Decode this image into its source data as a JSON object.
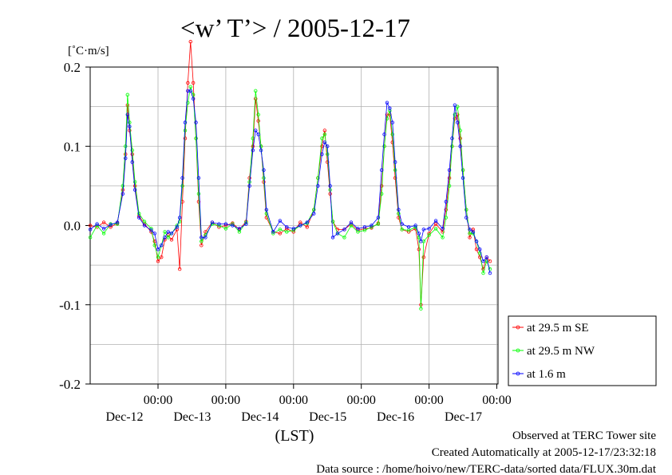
{
  "chart_data": {
    "type": "line",
    "title": "<w’ T’> / 2005-12-17",
    "unit_label": "[˚C·m/s]",
    "xlabel": "(LST)",
    "ylabel": "",
    "ylim": [
      -0.2,
      0.2
    ],
    "yticks": [
      0.2,
      0.1,
      0.0,
      -0.1,
      -0.2
    ],
    "ytick_labels": [
      "0.2",
      "0.1",
      "0.0",
      "-0.1",
      "-0.2"
    ],
    "xlim_days": [
      0,
      6
    ],
    "xtick_labels": [
      {
        "time": "00:00",
        "date": "Dec-12"
      },
      {
        "time": "00:00",
        "date": "Dec-13"
      },
      {
        "time": "00:00",
        "date": "Dec-14"
      },
      {
        "time": "00:00",
        "date": "Dec-15"
      },
      {
        "time": "00:00",
        "date": "Dec-16"
      },
      {
        "time": "00:00",
        "date": "Dec-17"
      }
    ],
    "grid": true,
    "legend_position": "right",
    "series": [
      {
        "name": "at 29.5 m SE",
        "color": "#ff0000",
        "points": [
          [
            0.0,
            0.0
          ],
          [
            0.1,
            -0.002
          ],
          [
            0.2,
            0.004
          ],
          [
            0.3,
            -0.002
          ],
          [
            0.4,
            0.003
          ],
          [
            0.48,
            0.045
          ],
          [
            0.52,
            0.09
          ],
          [
            0.55,
            0.152
          ],
          [
            0.58,
            0.12
          ],
          [
            0.62,
            0.09
          ],
          [
            0.66,
            0.05
          ],
          [
            0.72,
            0.012
          ],
          [
            0.8,
            0.002
          ],
          [
            0.9,
            -0.008
          ],
          [
            0.95,
            -0.02
          ],
          [
            1.0,
            -0.045
          ],
          [
            1.05,
            -0.04
          ],
          [
            1.1,
            -0.018
          ],
          [
            1.15,
            -0.012
          ],
          [
            1.2,
            -0.018
          ],
          [
            1.28,
            -0.005
          ],
          [
            1.32,
            -0.055
          ],
          [
            1.36,
            0.03
          ],
          [
            1.4,
            0.11
          ],
          [
            1.44,
            0.18
          ],
          [
            1.48,
            0.232
          ],
          [
            1.52,
            0.18
          ],
          [
            1.56,
            0.11
          ],
          [
            1.6,
            0.03
          ],
          [
            1.64,
            -0.025
          ],
          [
            1.7,
            -0.008
          ],
          [
            1.8,
            0.004
          ],
          [
            1.9,
            -0.002
          ],
          [
            2.0,
            0.0
          ],
          [
            2.1,
            0.003
          ],
          [
            2.2,
            -0.005
          ],
          [
            2.3,
            0.005
          ],
          [
            2.35,
            0.06
          ],
          [
            2.4,
            0.1
          ],
          [
            2.44,
            0.16
          ],
          [
            2.48,
            0.132
          ],
          [
            2.52,
            0.1
          ],
          [
            2.56,
            0.055
          ],
          [
            2.6,
            0.01
          ],
          [
            2.7,
            -0.008
          ],
          [
            2.8,
            -0.01
          ],
          [
            2.9,
            -0.004
          ],
          [
            3.0,
            -0.008
          ],
          [
            3.1,
            0.004
          ],
          [
            3.2,
            -0.002
          ],
          [
            3.3,
            0.02
          ],
          [
            3.36,
            0.06
          ],
          [
            3.42,
            0.1
          ],
          [
            3.46,
            0.12
          ],
          [
            3.5,
            0.08
          ],
          [
            3.54,
            0.04
          ],
          [
            3.58,
            0.005
          ],
          [
            3.65,
            -0.005
          ],
          [
            3.75,
            -0.005
          ],
          [
            3.85,
            0.002
          ],
          [
            3.95,
            -0.006
          ],
          [
            4.05,
            -0.004
          ],
          [
            4.15,
            -0.003
          ],
          [
            4.25,
            0.003
          ],
          [
            4.3,
            0.05
          ],
          [
            4.34,
            0.1
          ],
          [
            4.38,
            0.14
          ],
          [
            4.42,
            0.14
          ],
          [
            4.46,
            0.105
          ],
          [
            4.5,
            0.06
          ],
          [
            4.55,
            0.01
          ],
          [
            4.6,
            -0.005
          ],
          [
            4.7,
            -0.008
          ],
          [
            4.8,
            -0.004
          ],
          [
            4.85,
            -0.03
          ],
          [
            4.88,
            -0.1
          ],
          [
            4.92,
            -0.04
          ],
          [
            5.0,
            -0.01
          ],
          [
            5.1,
            0.002
          ],
          [
            5.2,
            -0.008
          ],
          [
            5.25,
            0.02
          ],
          [
            5.3,
            0.06
          ],
          [
            5.34,
            0.1
          ],
          [
            5.38,
            0.135
          ],
          [
            5.42,
            0.14
          ],
          [
            5.46,
            0.11
          ],
          [
            5.5,
            0.07
          ],
          [
            5.55,
            0.02
          ],
          [
            5.6,
            -0.015
          ],
          [
            5.65,
            -0.005
          ],
          [
            5.7,
            -0.03
          ],
          [
            5.75,
            -0.04
          ],
          [
            5.8,
            -0.055
          ],
          [
            5.85,
            -0.04
          ],
          [
            5.9,
            -0.045
          ]
        ]
      },
      {
        "name": "at 29.5 m NW",
        "color": "#00ff00",
        "points": [
          [
            0.0,
            -0.015
          ],
          [
            0.1,
            0.0
          ],
          [
            0.2,
            -0.01
          ],
          [
            0.3,
            0.002
          ],
          [
            0.4,
            0.002
          ],
          [
            0.48,
            0.05
          ],
          [
            0.52,
            0.1
          ],
          [
            0.55,
            0.165
          ],
          [
            0.58,
            0.13
          ],
          [
            0.62,
            0.095
          ],
          [
            0.66,
            0.055
          ],
          [
            0.72,
            0.015
          ],
          [
            0.8,
            0.005
          ],
          [
            0.9,
            -0.004
          ],
          [
            0.95,
            -0.025
          ],
          [
            1.0,
            -0.04
          ],
          [
            1.05,
            -0.025
          ],
          [
            1.1,
            -0.008
          ],
          [
            1.15,
            -0.015
          ],
          [
            1.2,
            -0.01
          ],
          [
            1.28,
            0.0
          ],
          [
            1.32,
            0.005
          ],
          [
            1.36,
            0.05
          ],
          [
            1.4,
            0.12
          ],
          [
            1.44,
            0.155
          ],
          [
            1.48,
            0.175
          ],
          [
            1.52,
            0.165
          ],
          [
            1.56,
            0.11
          ],
          [
            1.6,
            0.04
          ],
          [
            1.64,
            -0.02
          ],
          [
            1.7,
            -0.012
          ],
          [
            1.8,
            0.002
          ],
          [
            1.9,
            0.0
          ],
          [
            2.0,
            -0.004
          ],
          [
            2.1,
            0.002
          ],
          [
            2.2,
            -0.008
          ],
          [
            2.3,
            0.004
          ],
          [
            2.35,
            0.055
          ],
          [
            2.4,
            0.11
          ],
          [
            2.44,
            0.17
          ],
          [
            2.48,
            0.14
          ],
          [
            2.52,
            0.1
          ],
          [
            2.56,
            0.06
          ],
          [
            2.6,
            0.015
          ],
          [
            2.7,
            -0.01
          ],
          [
            2.8,
            -0.005
          ],
          [
            2.9,
            -0.008
          ],
          [
            3.0,
            -0.006
          ],
          [
            3.1,
            0.0
          ],
          [
            3.2,
            0.003
          ],
          [
            3.3,
            0.02
          ],
          [
            3.36,
            0.06
          ],
          [
            3.42,
            0.11
          ],
          [
            3.46,
            0.115
          ],
          [
            3.5,
            0.09
          ],
          [
            3.54,
            0.045
          ],
          [
            3.58,
            0.005
          ],
          [
            3.65,
            -0.01
          ],
          [
            3.75,
            -0.015
          ],
          [
            3.85,
            0.0
          ],
          [
            3.95,
            -0.008
          ],
          [
            4.05,
            -0.006
          ],
          [
            4.15,
            -0.002
          ],
          [
            4.25,
            0.002
          ],
          [
            4.3,
            0.04
          ],
          [
            4.34,
            0.1
          ],
          [
            4.38,
            0.135
          ],
          [
            4.42,
            0.145
          ],
          [
            4.46,
            0.115
          ],
          [
            4.5,
            0.07
          ],
          [
            4.55,
            0.015
          ],
          [
            4.6,
            -0.005
          ],
          [
            4.7,
            -0.006
          ],
          [
            4.8,
            -0.002
          ],
          [
            4.85,
            -0.015
          ],
          [
            4.88,
            -0.105
          ],
          [
            4.92,
            -0.02
          ],
          [
            5.0,
            -0.012
          ],
          [
            5.1,
            -0.004
          ],
          [
            5.2,
            -0.015
          ],
          [
            5.25,
            0.01
          ],
          [
            5.3,
            0.05
          ],
          [
            5.34,
            0.1
          ],
          [
            5.38,
            0.14
          ],
          [
            5.42,
            0.15
          ],
          [
            5.46,
            0.12
          ],
          [
            5.5,
            0.07
          ],
          [
            5.55,
            0.02
          ],
          [
            5.6,
            -0.01
          ],
          [
            5.65,
            -0.01
          ],
          [
            5.7,
            -0.02
          ],
          [
            5.75,
            -0.035
          ],
          [
            5.8,
            -0.06
          ],
          [
            5.85,
            -0.045
          ],
          [
            5.9,
            -0.055
          ]
        ]
      },
      {
        "name": "at 1.6 m",
        "color": "#0000ff",
        "points": [
          [
            0.0,
            -0.005
          ],
          [
            0.1,
            0.002
          ],
          [
            0.2,
            -0.004
          ],
          [
            0.3,
            0.001
          ],
          [
            0.4,
            0.004
          ],
          [
            0.48,
            0.04
          ],
          [
            0.52,
            0.085
          ],
          [
            0.55,
            0.14
          ],
          [
            0.58,
            0.125
          ],
          [
            0.62,
            0.08
          ],
          [
            0.66,
            0.045
          ],
          [
            0.72,
            0.01
          ],
          [
            0.8,
            0.0
          ],
          [
            0.9,
            -0.006
          ],
          [
            0.95,
            -0.01
          ],
          [
            1.0,
            -0.03
          ],
          [
            1.05,
            -0.025
          ],
          [
            1.1,
            -0.015
          ],
          [
            1.15,
            -0.008
          ],
          [
            1.2,
            -0.01
          ],
          [
            1.28,
            -0.002
          ],
          [
            1.32,
            0.01
          ],
          [
            1.36,
            0.06
          ],
          [
            1.4,
            0.13
          ],
          [
            1.44,
            0.17
          ],
          [
            1.48,
            0.17
          ],
          [
            1.52,
            0.16
          ],
          [
            1.56,
            0.13
          ],
          [
            1.6,
            0.06
          ],
          [
            1.64,
            -0.015
          ],
          [
            1.7,
            -0.015
          ],
          [
            1.8,
            0.004
          ],
          [
            1.9,
            0.002
          ],
          [
            2.0,
            0.002
          ],
          [
            2.1,
            0.0
          ],
          [
            2.2,
            -0.004
          ],
          [
            2.3,
            0.002
          ],
          [
            2.35,
            0.05
          ],
          [
            2.4,
            0.095
          ],
          [
            2.44,
            0.12
          ],
          [
            2.48,
            0.115
          ],
          [
            2.52,
            0.095
          ],
          [
            2.56,
            0.07
          ],
          [
            2.6,
            0.02
          ],
          [
            2.7,
            -0.008
          ],
          [
            2.8,
            0.006
          ],
          [
            2.9,
            -0.002
          ],
          [
            3.0,
            -0.004
          ],
          [
            3.1,
            0.0
          ],
          [
            3.2,
            0.004
          ],
          [
            3.3,
            0.015
          ],
          [
            3.36,
            0.05
          ],
          [
            3.42,
            0.09
          ],
          [
            3.46,
            0.105
          ],
          [
            3.5,
            0.1
          ],
          [
            3.54,
            0.05
          ],
          [
            3.58,
            -0.015
          ],
          [
            3.65,
            -0.01
          ],
          [
            3.75,
            -0.005
          ],
          [
            3.85,
            0.004
          ],
          [
            3.95,
            -0.004
          ],
          [
            4.05,
            -0.002
          ],
          [
            4.15,
            0.0
          ],
          [
            4.25,
            0.01
          ],
          [
            4.3,
            0.07
          ],
          [
            4.34,
            0.115
          ],
          [
            4.38,
            0.155
          ],
          [
            4.42,
            0.148
          ],
          [
            4.46,
            0.13
          ],
          [
            4.5,
            0.08
          ],
          [
            4.55,
            0.02
          ],
          [
            4.6,
            0.002
          ],
          [
            4.7,
            -0.002
          ],
          [
            4.8,
            0.0
          ],
          [
            4.85,
            -0.01
          ],
          [
            4.88,
            -0.02
          ],
          [
            4.92,
            -0.005
          ],
          [
            5.0,
            -0.004
          ],
          [
            5.1,
            0.006
          ],
          [
            5.2,
            -0.004
          ],
          [
            5.25,
            0.03
          ],
          [
            5.3,
            0.07
          ],
          [
            5.34,
            0.11
          ],
          [
            5.38,
            0.152
          ],
          [
            5.42,
            0.13
          ],
          [
            5.46,
            0.1
          ],
          [
            5.5,
            0.06
          ],
          [
            5.55,
            0.01
          ],
          [
            5.6,
            -0.005
          ],
          [
            5.65,
            -0.008
          ],
          [
            5.7,
            -0.02
          ],
          [
            5.75,
            -0.03
          ],
          [
            5.8,
            -0.045
          ],
          [
            5.85,
            -0.04
          ],
          [
            5.9,
            -0.06
          ]
        ]
      }
    ]
  },
  "footer": {
    "line1": "Observed at TERC Tower site",
    "line2": "Created Automatically at 2005-12-17/23:32:18",
    "line3": "Data source : /home/hoivo/new/TERC-data/sorted  data/FLUX.30m.dat"
  }
}
